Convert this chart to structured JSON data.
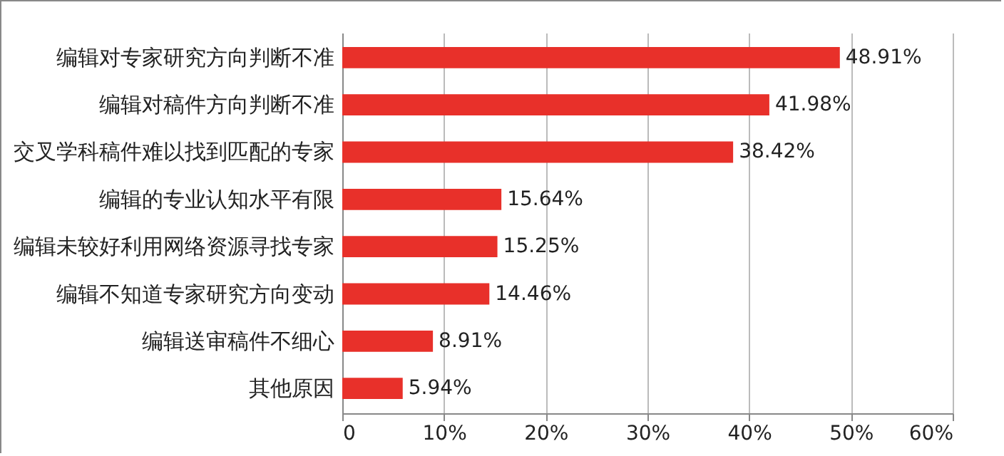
{
  "chart_data": {
    "type": "bar",
    "orientation": "horizontal",
    "categories": [
      "编辑对专家研究方向判断不准",
      "编辑对稿件方向判断不准",
      "交叉学科稿件难以找到匹配的专家",
      "编辑的专业认知水平有限",
      "编辑未较好利用网络资源寻找专家",
      "编辑不知道专家研究方向变动",
      "编辑送审稿件不细心",
      "其他原因"
    ],
    "values": [
      48.91,
      41.98,
      38.42,
      15.64,
      15.25,
      14.46,
      8.91,
      5.94
    ],
    "value_labels": [
      "48.91%",
      "41.98%",
      "38.42%",
      "15.64%",
      "15.25%",
      "14.46%",
      "8.91%",
      "5.94%"
    ],
    "color": "#e8302a",
    "xlim": [
      0,
      60
    ],
    "xticks": [
      0,
      {
        "value": 10,
        "label": "10%"
      },
      {
        "value": 20,
        "label": "20%"
      },
      {
        "value": 30,
        "label": "30%"
      },
      {
        "value": 40,
        "label": "40%"
      },
      {
        "value": 50,
        "label": "50%"
      },
      {
        "value": 60,
        "label": "60%"
      }
    ],
    "grid": "x"
  }
}
